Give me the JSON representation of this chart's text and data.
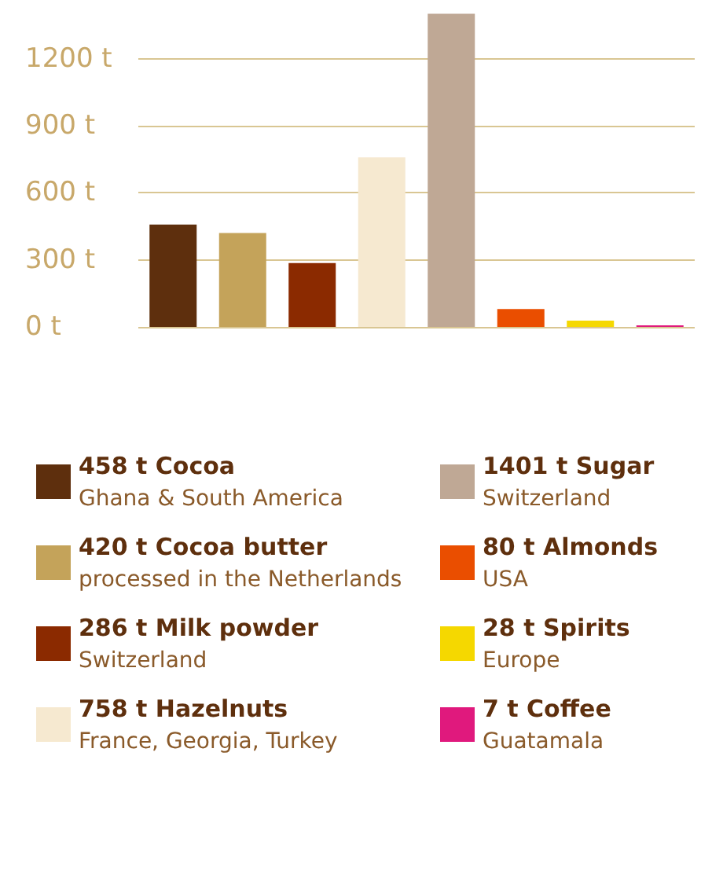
{
  "chart_data": {
    "type": "bar",
    "categories": [
      null,
      null,
      null,
      null,
      null,
      null,
      null,
      null
    ],
    "series": [
      {
        "name": "458 t Cocoa",
        "color": "#5e2f0d",
        "values": [
          458,
          null,
          null,
          null,
          null,
          null,
          null,
          null
        ]
      },
      {
        "name": "420 t Cocoa butter",
        "color": "#c4a35a",
        "values": [
          null,
          420,
          null,
          null,
          null,
          null,
          null,
          null
        ]
      },
      {
        "name": "286 t Milk powder",
        "color": "#8b2a00",
        "values": [
          null,
          null,
          286,
          null,
          null,
          null,
          null,
          null
        ]
      },
      {
        "name": "758 t Hazelnuts",
        "color": "#f6e9d0",
        "values": [
          null,
          null,
          null,
          758,
          null,
          null,
          null,
          null
        ]
      },
      {
        "name": "1401 t Sugar",
        "color": "#bfa895",
        "values": [
          null,
          null,
          null,
          null,
          1401,
          null,
          null,
          null
        ]
      },
      {
        "name": "80 t Almonds",
        "color": "#ea4e00",
        "values": [
          null,
          null,
          null,
          null,
          null,
          80,
          null,
          null
        ]
      },
      {
        "name": "28 t Spirits",
        "color": "#f5d800",
        "values": [
          null,
          null,
          null,
          null,
          null,
          null,
          28,
          null
        ]
      },
      {
        "name": "7 t Coffee",
        "color": "#e0197d",
        "values": [
          null,
          null,
          null,
          null,
          null,
          null,
          null,
          7
        ]
      }
    ],
    "ylim": [
      0,
      1420
    ],
    "yticks": [
      {
        "value": 0,
        "label": "0 t"
      },
      {
        "value": 300,
        "label": "300 t"
      },
      {
        "value": 600,
        "label": "600 t"
      },
      {
        "value": 900,
        "label": "900 t"
      },
      {
        "value": 1200,
        "label": "1200 t"
      }
    ],
    "grid": "y",
    "tick_labels": "y",
    "legend": "bottom",
    "annotations": [
      "Ghana & South America",
      "processed in the Netherlands",
      "Switzerland",
      "France, Georgia, Turkey",
      "Switzerland",
      "USA",
      "Europe",
      "Guatamala"
    ]
  }
}
